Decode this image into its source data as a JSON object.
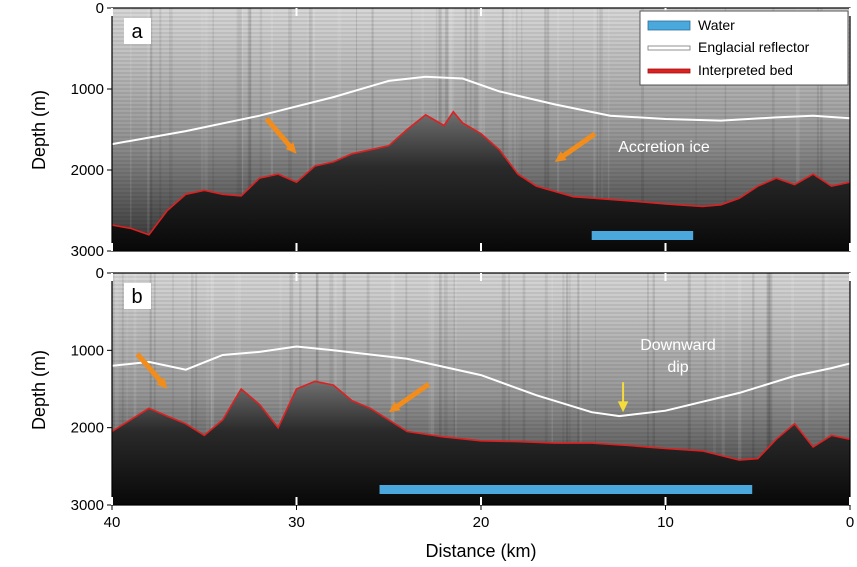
{
  "chart_data": {
    "type": "radar-profile",
    "xlabel": "Distance (km)",
    "ylabel": "Depth (m)",
    "xlim": [
      40,
      0
    ],
    "ylim": [
      0,
      3000
    ],
    "x_ticks": [
      40,
      30,
      20,
      10,
      0
    ],
    "y_ticks": [
      0,
      1000,
      2000,
      3000
    ],
    "legend": {
      "placement": "top-right",
      "entries": [
        {
          "label": "Water",
          "color": "#4aa8dd"
        },
        {
          "label": "Englacial reflector",
          "color": "#ffffff"
        },
        {
          "label": "Interpreted bed",
          "color": "#e02020"
        }
      ]
    },
    "panels": [
      {
        "label": "a",
        "englacial_reflector": [
          [
            40,
            1680
          ],
          [
            36,
            1520
          ],
          [
            32,
            1330
          ],
          [
            28,
            1100
          ],
          [
            25,
            900
          ],
          [
            23,
            850
          ],
          [
            21,
            870
          ],
          [
            19,
            1030
          ],
          [
            16,
            1190
          ],
          [
            13,
            1330
          ],
          [
            10,
            1370
          ],
          [
            7,
            1390
          ],
          [
            4,
            1350
          ],
          [
            2,
            1330
          ],
          [
            0,
            1360
          ]
        ],
        "interpreted_bed": [
          [
            40,
            2680
          ],
          [
            39,
            2720
          ],
          [
            38,
            2800
          ],
          [
            37,
            2500
          ],
          [
            36,
            2300
          ],
          [
            35,
            2250
          ],
          [
            34,
            2300
          ],
          [
            33,
            2320
          ],
          [
            32,
            2100
          ],
          [
            31,
            2050
          ],
          [
            30,
            2150
          ],
          [
            29,
            1950
          ],
          [
            28,
            1900
          ],
          [
            27,
            1800
          ],
          [
            26,
            1750
          ],
          [
            25,
            1700
          ],
          [
            24,
            1500
          ],
          [
            23,
            1320
          ],
          [
            22,
            1450
          ],
          [
            21.5,
            1280
          ],
          [
            21,
            1420
          ],
          [
            20,
            1550
          ],
          [
            19,
            1750
          ],
          [
            18,
            2050
          ],
          [
            17,
            2200
          ],
          [
            15,
            2330
          ],
          [
            12,
            2380
          ],
          [
            10,
            2420
          ],
          [
            8,
            2450
          ],
          [
            7,
            2430
          ],
          [
            6,
            2350
          ],
          [
            5,
            2200
          ],
          [
            4,
            2100
          ],
          [
            3,
            2180
          ],
          [
            2,
            2050
          ],
          [
            1,
            2200
          ],
          [
            0,
            2150
          ]
        ],
        "water": [
          [
            14,
            8.5
          ]
        ],
        "annotations": [
          {
            "text": "Accretion ice",
            "x": 14.5,
            "y": 1650
          },
          {
            "text": "",
            "x": 30,
            "y": 1800,
            "kind": "arrow"
          },
          {
            "text": "",
            "x": 16,
            "y": 1900,
            "kind": "arrow"
          }
        ]
      },
      {
        "label": "b",
        "englacial_reflector": [
          [
            40,
            1200
          ],
          [
            38,
            1150
          ],
          [
            36,
            1250
          ],
          [
            34,
            1060
          ],
          [
            32,
            1020
          ],
          [
            30,
            950
          ],
          [
            28,
            1000
          ],
          [
            24,
            1110
          ],
          [
            20,
            1320
          ],
          [
            17,
            1580
          ],
          [
            14,
            1800
          ],
          [
            12.5,
            1850
          ],
          [
            10,
            1780
          ],
          [
            6,
            1550
          ],
          [
            3,
            1330
          ],
          [
            1,
            1230
          ],
          [
            0,
            1170
          ]
        ],
        "interpreted_bed": [
          [
            40,
            2050
          ],
          [
            39,
            1900
          ],
          [
            38,
            1750
          ],
          [
            37,
            1850
          ],
          [
            36,
            1950
          ],
          [
            35,
            2100
          ],
          [
            34,
            1900
          ],
          [
            33,
            1500
          ],
          [
            32,
            1700
          ],
          [
            31.5,
            1850
          ],
          [
            31,
            2000
          ],
          [
            30.5,
            1750
          ],
          [
            30,
            1500
          ],
          [
            29,
            1400
          ],
          [
            28,
            1450
          ],
          [
            27,
            1650
          ],
          [
            26,
            1750
          ],
          [
            25,
            1900
          ],
          [
            24,
            2050
          ],
          [
            22,
            2120
          ],
          [
            20,
            2170
          ],
          [
            18,
            2180
          ],
          [
            16,
            2200
          ],
          [
            14,
            2200
          ],
          [
            12,
            2230
          ],
          [
            10,
            2270
          ],
          [
            8,
            2300
          ],
          [
            6,
            2420
          ],
          [
            5,
            2400
          ],
          [
            4,
            2150
          ],
          [
            3,
            1950
          ],
          [
            2,
            2250
          ],
          [
            1,
            2100
          ],
          [
            0,
            2150
          ]
        ],
        "water": [
          [
            25.5,
            5.3
          ]
        ],
        "annotations": [
          {
            "text": "Downward dip",
            "x": 12.3,
            "y": 1200
          },
          {
            "text": "",
            "x": 37,
            "y": 1500,
            "kind": "arrow"
          },
          {
            "text": "",
            "x": 25,
            "y": 1800,
            "kind": "arrow"
          },
          {
            "text": "",
            "x": 12.3,
            "y": 1800,
            "kind": "arrow-yellow"
          }
        ]
      }
    ]
  },
  "annotations_text": {
    "accretion": "Accretion ice",
    "downward_line1": "Downward",
    "downward_line2": "dip"
  }
}
